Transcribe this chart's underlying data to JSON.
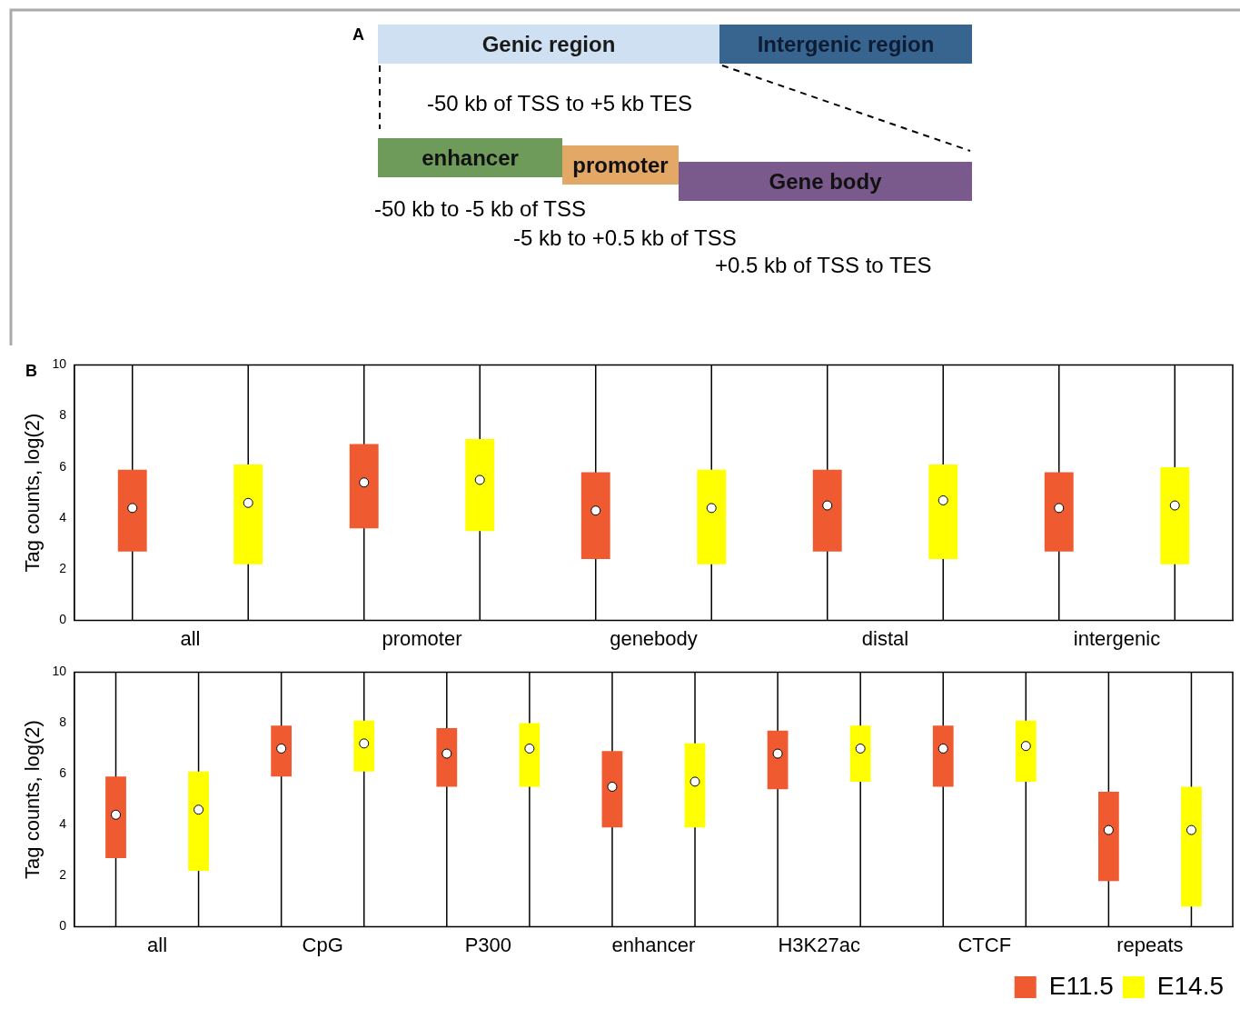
{
  "chart_data": [
    {
      "type": "other",
      "annotations": [
        "A",
        "Genic region",
        "Intergenic region",
        "-50 kb of TSS to +5 kb TES",
        "enhancer",
        "promoter",
        "Gene body",
        "-50 kb to -5 kb of TSS",
        "-5 kb to +0.5 kb of TSS",
        "+0.5 kb of TSS to TES"
      ]
    },
    {
      "type": "box",
      "annotations": [
        "B"
      ],
      "ylabel": "Tag counts, log(2)",
      "categories": [
        "all",
        "promoter",
        "genebody",
        "distal",
        "intergenic"
      ],
      "ylim": [
        0,
        10
      ],
      "yticks": [
        0,
        2,
        4,
        6,
        8,
        10
      ],
      "grid": false,
      "legend": false,
      "series": [
        {
          "color": "#f05a30",
          "boxes": [
            {
              "low": 0,
              "q1": 2.7,
              "median": 4.4,
              "q3": 5.9,
              "high": 10
            },
            {
              "low": 0,
              "q1": 3.6,
              "median": 5.4,
              "q3": 6.9,
              "high": 10
            },
            {
              "low": 0,
              "q1": 2.4,
              "median": 4.3,
              "q3": 5.8,
              "high": 10
            },
            {
              "low": 0,
              "q1": 2.7,
              "median": 4.5,
              "q3": 5.9,
              "high": 10
            },
            {
              "low": 0,
              "q1": 2.7,
              "median": 4.4,
              "q3": 5.8,
              "high": 10
            }
          ]
        },
        {
          "color": "#ffff00",
          "boxes": [
            {
              "low": 0,
              "q1": 2.2,
              "median": 4.6,
              "q3": 6.1,
              "high": 10
            },
            {
              "low": 0,
              "q1": 3.5,
              "median": 5.5,
              "q3": 7.1,
              "high": 10
            },
            {
              "low": 0,
              "q1": 2.2,
              "median": 4.4,
              "q3": 5.9,
              "high": 10
            },
            {
              "low": 0,
              "q1": 2.4,
              "median": 4.7,
              "q3": 6.1,
              "high": 10
            },
            {
              "low": 0,
              "q1": 2.2,
              "median": 4.5,
              "q3": 6.0,
              "high": 10
            }
          ]
        }
      ]
    },
    {
      "type": "box",
      "ylabel": "Tag counts, log(2)",
      "categories": [
        "all",
        "CpG",
        "P300",
        "enhancer",
        "H3K27ac",
        "CTCF",
        "repeats"
      ],
      "ylim": [
        0,
        10
      ],
      "yticks": [
        0,
        2,
        4,
        6,
        8,
        10
      ],
      "grid": false,
      "legend": "bottom right",
      "series": [
        {
          "name": "E11.5",
          "color": "#f05a30",
          "boxes": [
            {
              "low": 0,
              "q1": 2.7,
              "median": 4.4,
              "q3": 5.9,
              "high": 10
            },
            {
              "low": 0,
              "q1": 5.9,
              "median": 7.0,
              "q3": 7.9,
              "high": 10
            },
            {
              "low": 0,
              "q1": 5.5,
              "median": 6.8,
              "q3": 7.8,
              "high": 10
            },
            {
              "low": 0,
              "q1": 3.9,
              "median": 5.5,
              "q3": 6.9,
              "high": 10
            },
            {
              "low": 0,
              "q1": 5.4,
              "median": 6.8,
              "q3": 7.7,
              "high": 10
            },
            {
              "low": 0,
              "q1": 5.5,
              "median": 7.0,
              "q3": 7.9,
              "high": 10
            },
            {
              "low": 0,
              "q1": 1.8,
              "median": 3.8,
              "q3": 5.3,
              "high": 10
            }
          ]
        },
        {
          "name": "E14.5",
          "color": "#ffff00",
          "boxes": [
            {
              "low": 0,
              "q1": 2.2,
              "median": 4.6,
              "q3": 6.1,
              "high": 10
            },
            {
              "low": 0,
              "q1": 6.1,
              "median": 7.2,
              "q3": 8.1,
              "high": 10
            },
            {
              "low": 0,
              "q1": 5.5,
              "median": 7.0,
              "q3": 8.0,
              "high": 10
            },
            {
              "low": 0,
              "q1": 3.9,
              "median": 5.7,
              "q3": 7.2,
              "high": 10
            },
            {
              "low": 0,
              "q1": 5.7,
              "median": 7.0,
              "q3": 7.9,
              "high": 10
            },
            {
              "low": 0,
              "q1": 5.7,
              "median": 7.1,
              "q3": 8.1,
              "high": 10
            },
            {
              "low": 0,
              "q1": 0.8,
              "median": 3.8,
              "q3": 5.5,
              "high": 10
            }
          ]
        }
      ]
    }
  ]
}
